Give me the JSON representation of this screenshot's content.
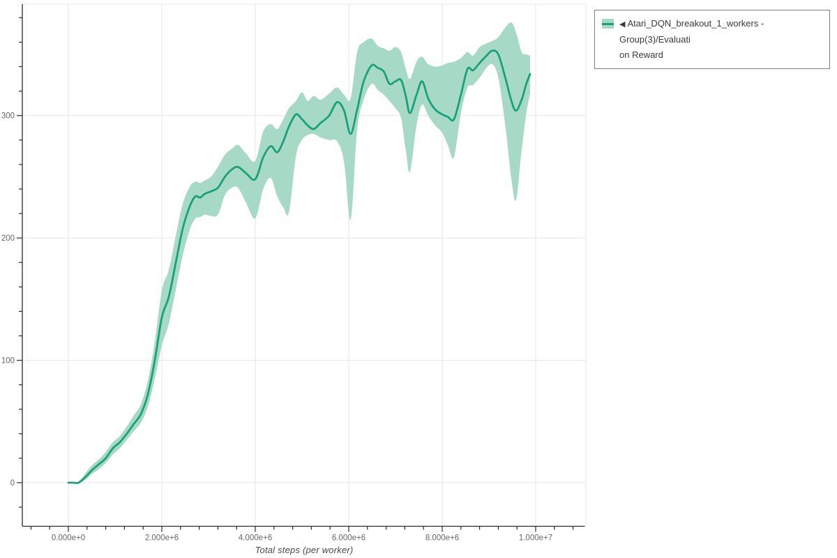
{
  "page": {
    "background": "#ffffff"
  },
  "legend": {
    "arrow": "◀",
    "label_full": "Atari_DQN_breakout_1_workers - Group(3)/Evaluation Reward",
    "lines": [
      "Atari_DQN_breakout_1_workers - Group(3)/Evaluati",
      "on Reward"
    ],
    "border_color": "#7f7f7f"
  },
  "chart_data": {
    "type": "line",
    "title": "",
    "xlabel": "Total steps (per worker)",
    "ylabel": "",
    "grid": true,
    "legend_position": "top-right",
    "xlim_e6": [
      -1.0,
      11.0
    ],
    "ylim": [
      -36,
      390
    ],
    "x_ticks": {
      "values_e6": [
        0,
        2,
        4,
        6,
        8,
        10
      ],
      "labels": [
        "0.000e+0",
        "2.000e+6",
        "4.000e+6",
        "6.000e+6",
        "8.000e+6",
        "1.000e+7"
      ],
      "minor_step_e6": 0.4,
      "minor_range_e6": [
        -0.8,
        10.8
      ]
    },
    "y_ticks": {
      "values": [
        0,
        100,
        200,
        300
      ],
      "labels": [
        "0",
        "100",
        "200",
        "300"
      ],
      "minor_step": 20,
      "minor_range": [
        -20,
        380
      ]
    },
    "colors": {
      "line": "#1aa179",
      "band": "#a6d9c6",
      "grid": "#e6e6e6",
      "axis": "#2a2a2a",
      "tick_label": "#666666"
    },
    "series": [
      {
        "name": "Atari_DQN_breakout_1_workers - Group(3)/Evaluation Reward",
        "color": "#1aa179",
        "band_color": "#a6d9c6",
        "x_e6": [
          0.0,
          0.1,
          0.22,
          0.35,
          0.5,
          0.65,
          0.8,
          0.95,
          1.1,
          1.25,
          1.4,
          1.55,
          1.7,
          1.85,
          2.0,
          2.15,
          2.3,
          2.45,
          2.6,
          2.72,
          2.82,
          2.92,
          3.05,
          3.2,
          3.35,
          3.5,
          3.63,
          3.8,
          4.0,
          4.17,
          4.33,
          4.47,
          4.6,
          4.72,
          4.87,
          5.0,
          5.12,
          5.25,
          5.4,
          5.58,
          5.75,
          5.9,
          6.04,
          6.18,
          6.32,
          6.49,
          6.62,
          6.75,
          6.87,
          7.0,
          7.12,
          7.22,
          7.31,
          7.45,
          7.57,
          7.7,
          7.85,
          8.0,
          8.12,
          8.25,
          8.4,
          8.54,
          8.66,
          8.8,
          8.95,
          9.07,
          9.2,
          9.35,
          9.48,
          9.58,
          9.7,
          9.8,
          9.88
        ],
        "y": [
          0,
          0,
          0,
          4,
          10,
          15,
          20,
          28,
          33,
          40,
          48,
          56,
          72,
          100,
          135,
          152,
          180,
          208,
          226,
          234,
          233,
          236,
          238,
          241,
          250,
          256,
          258,
          253,
          248,
          266,
          275,
          270,
          279,
          291,
          301,
          297,
          292,
          289,
          294,
          300,
          311,
          304,
          285,
          305,
          328,
          341,
          339,
          336,
          326,
          328,
          329,
          316,
          302,
          317,
          328,
          314,
          305,
          301,
          299,
          297,
          317,
          338,
          337,
          343,
          349,
          353,
          350,
          331,
          312,
          304,
          313,
          326,
          334
        ],
        "y_lower": [
          0,
          0,
          0,
          2,
          7,
          11,
          16,
          23,
          28,
          35,
          42,
          49,
          62,
          85,
          112,
          130,
          158,
          186,
          207,
          216,
          217,
          219,
          218,
          219,
          235,
          241,
          241,
          229,
          216,
          240,
          249,
          234,
          225,
          221,
          267,
          280,
          284,
          285,
          282,
          280,
          279,
          262,
          215,
          288,
          313,
          326,
          321,
          317,
          312,
          306,
          298,
          272,
          254,
          292,
          309,
          300,
          292,
          286,
          276,
          266,
          302,
          323,
          325,
          331,
          339,
          342,
          331,
          292,
          248,
          231,
          272,
          302,
          318
        ],
        "y_upper": [
          0,
          0,
          1,
          7,
          14,
          19,
          25,
          33,
          38,
          46,
          55,
          64,
          83,
          115,
          157,
          174,
          202,
          228,
          242,
          246,
          245,
          247,
          250,
          258,
          268,
          273,
          276,
          269,
          263,
          287,
          293,
          289,
          297,
          306,
          312,
          319,
          312,
          316,
          313,
          318,
          323,
          317,
          314,
          352,
          360,
          363,
          357,
          355,
          353,
          356,
          352,
          338,
          330,
          344,
          348,
          342,
          340,
          341,
          343,
          344,
          347,
          352,
          349,
          356,
          359,
          361,
          364,
          372,
          376,
          368,
          352,
          350,
          349
        ]
      }
    ]
  }
}
